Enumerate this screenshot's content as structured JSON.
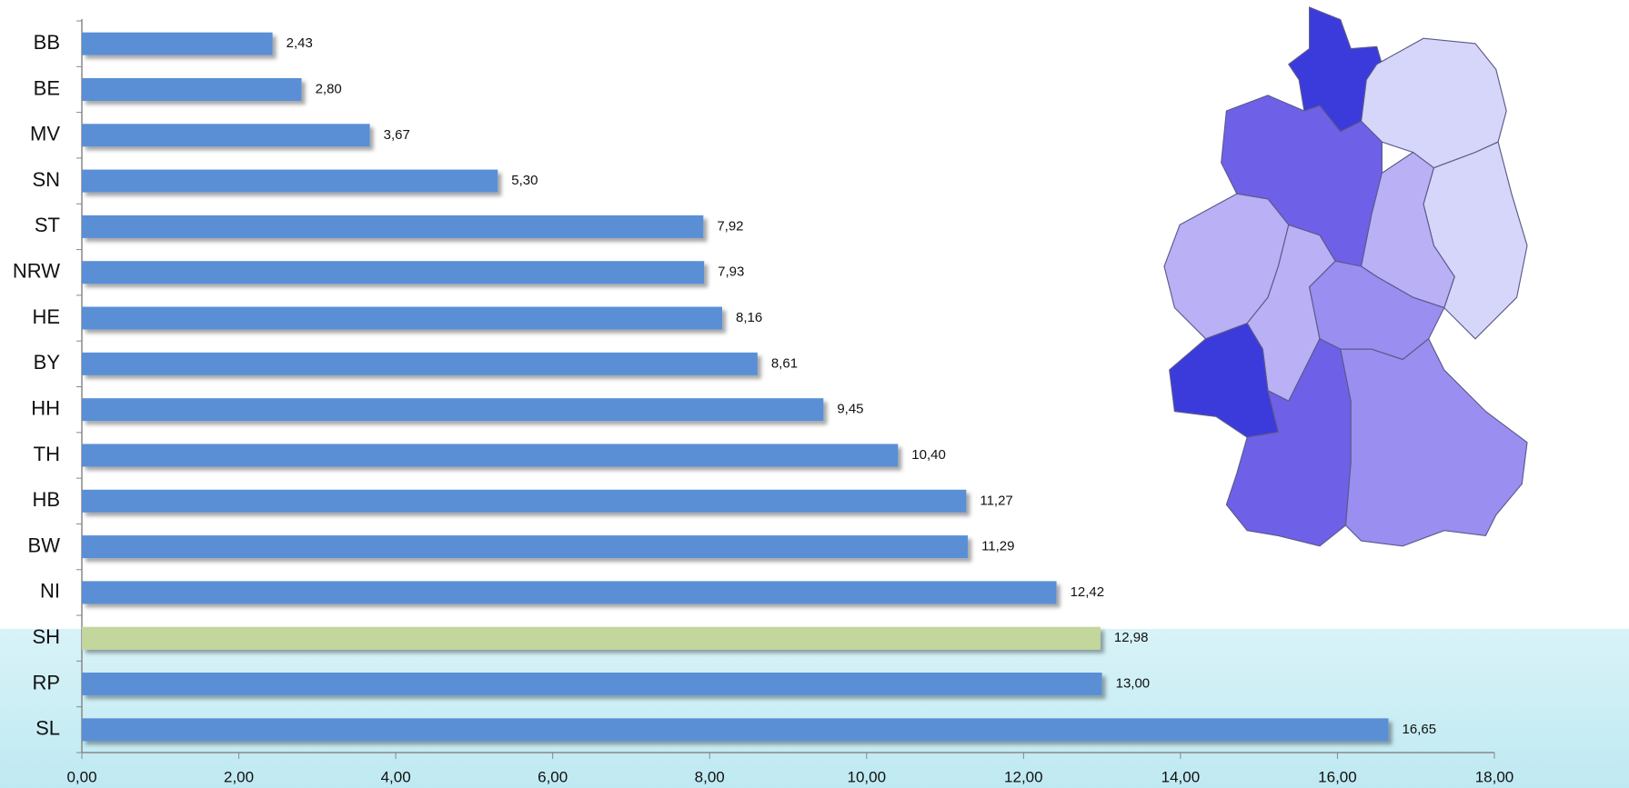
{
  "chart_data": {
    "type": "bar",
    "orientation": "horizontal",
    "categories": [
      "BB",
      "BE",
      "MV",
      "SN",
      "ST",
      "NRW",
      "HE",
      "BY",
      "HH",
      "TH",
      "HB",
      "BW",
      "NI",
      "SH",
      "RP",
      "SL"
    ],
    "values": [
      2.43,
      2.8,
      3.67,
      5.3,
      7.92,
      7.93,
      8.16,
      8.61,
      9.45,
      10.4,
      11.27,
      11.29,
      12.42,
      12.98,
      13.0,
      16.65
    ],
    "value_labels": [
      "2,43",
      "2,80",
      "3,67",
      "5,30",
      "7,92",
      "7,93",
      "8,16",
      "8,61",
      "9,45",
      "10,40",
      "11,27",
      "11,29",
      "12,42",
      "12,98",
      "13,00",
      "16,65"
    ],
    "colors": [
      "#5a8fd6",
      "#5a8fd6",
      "#5a8fd6",
      "#5a8fd6",
      "#5a8fd6",
      "#5a8fd6",
      "#5a8fd6",
      "#5a8fd6",
      "#5a8fd6",
      "#5a8fd6",
      "#5a8fd6",
      "#5a8fd6",
      "#5a8fd6",
      "#c3d69b",
      "#5a8fd6",
      "#5a8fd6"
    ],
    "xlim": [
      0,
      18
    ],
    "xticks": [
      {
        "value": 0,
        "label": "0,00"
      },
      {
        "value": 2,
        "label": "2,00"
      },
      {
        "value": 4,
        "label": "4,00"
      },
      {
        "value": 6,
        "label": "6,00"
      },
      {
        "value": 8,
        "label": "8,00"
      },
      {
        "value": 10,
        "label": "10,00"
      },
      {
        "value": 12,
        "label": "12,00"
      },
      {
        "value": 14,
        "label": "14,00"
      },
      {
        "value": 16,
        "label": "16,00"
      },
      {
        "value": 18,
        "label": "18,00"
      }
    ]
  }
}
